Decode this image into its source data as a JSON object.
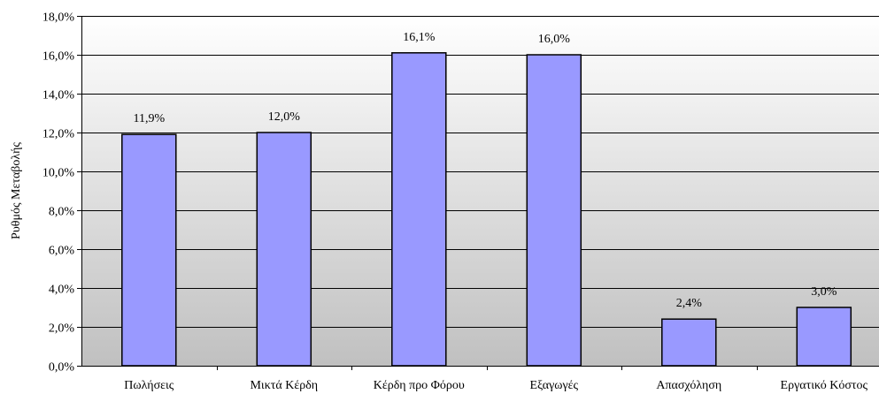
{
  "chart_data": {
    "type": "bar",
    "title": "",
    "xlabel": "",
    "ylabel": "Ρυθμός Μεταβολής",
    "categories": [
      "Πωλήσεις",
      "Μικτά Κέρδη",
      "Κέρδη προ Φόρου",
      "Εξαγωγές",
      "Απασχόληση",
      "Εργατικό Κόστος"
    ],
    "values": [
      11.9,
      12.0,
      16.1,
      16.0,
      2.4,
      3.0
    ],
    "data_labels": [
      "11,9%",
      "12,0%",
      "16,1%",
      "16,0%",
      "2,4%",
      "3,0%"
    ],
    "ylim": [
      0,
      18
    ],
    "yticks": [
      0,
      2,
      4,
      6,
      8,
      10,
      12,
      14,
      16,
      18
    ],
    "ytick_labels": [
      "0,0%",
      "2,0%",
      "4,0%",
      "6,0%",
      "8,0%",
      "10,0%",
      "12,0%",
      "14,0%",
      "16,0%",
      "18,0%"
    ],
    "grid": true,
    "legend": "none",
    "colors": {
      "bar_fill": "#9999ff",
      "bar_stroke": "#000000",
      "gridline": "#000000",
      "plot_bg_top": "#ffffff",
      "plot_bg_bottom": "#c0c0c0"
    }
  }
}
